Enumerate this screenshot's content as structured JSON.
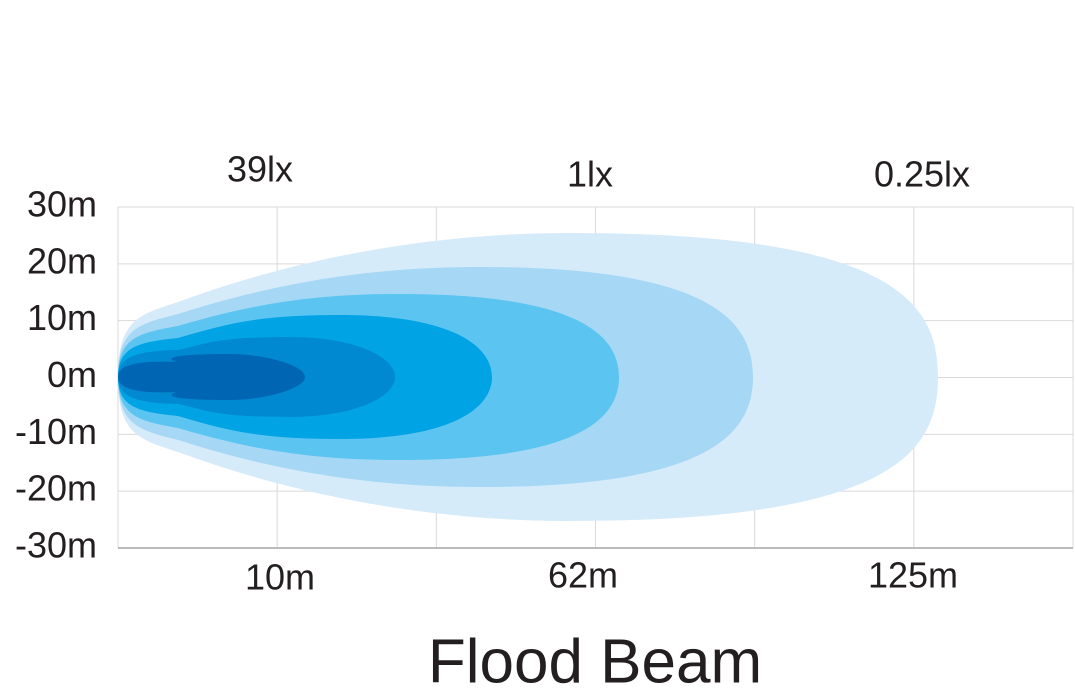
{
  "title": "Flood Beam",
  "lux_labels": [
    "39lx",
    "1lx",
    "0.25lx"
  ],
  "y_axis_labels": [
    "30m",
    "20m",
    "10m",
    "0m",
    "-10m",
    "-20m",
    "-30m"
  ],
  "distance_labels": [
    "10m",
    "62m",
    "125m"
  ]
}
